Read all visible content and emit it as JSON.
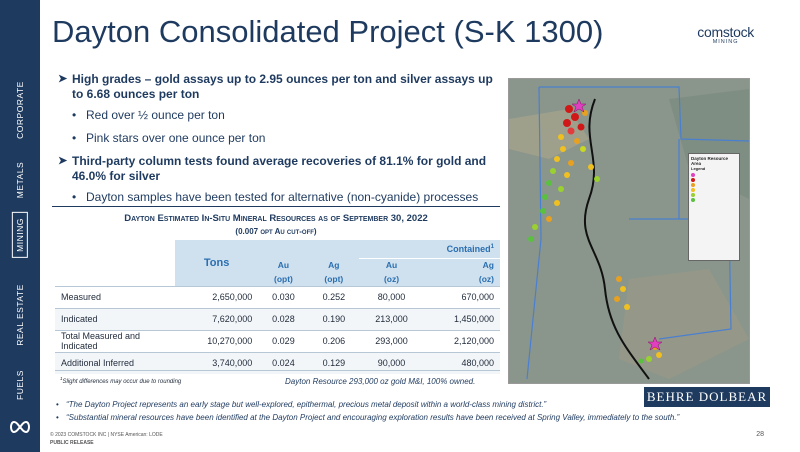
{
  "sidebar": {
    "items": [
      {
        "label": "CORPORATE"
      },
      {
        "label": "METALS"
      },
      {
        "label": "MINING"
      },
      {
        "label": "REAL ESTATE"
      },
      {
        "label": "FUELS"
      }
    ],
    "active": "MINING"
  },
  "header": {
    "title": "Dayton Consolidated Project (S-K 1300)",
    "brand_name": "comstock",
    "brand_sub": "MINING"
  },
  "bullets": {
    "b1": "High grades – gold assays up to 2.95 ounces per ton and silver assays up to 6.68 ounces per ton",
    "b1_sub1": "Red over ½ ounce per ton",
    "b1_sub2": "Pink stars over one ounce per ton",
    "b2": "Third-party column tests found average recoveries of 81.1% for gold and 46.0% for silver",
    "b2_sub1": "Dayton samples have been tested for alternative (non-cyanide) processes"
  },
  "table": {
    "title": "Dayton Estimated In-Situ Mineral Resources as of September 30, 2022",
    "subtitle": "(0.007 opt Au cut-off)",
    "headers": {
      "tons": "Tons",
      "contained": "Contained",
      "contained_sup": "1",
      "au": "Au",
      "ag": "Ag",
      "opt": "(opt)",
      "oz": "(oz)"
    },
    "rows": [
      {
        "label": "Measured",
        "tons": "2,650,000",
        "au_opt": "0.030",
        "ag_opt": "0.252",
        "au_oz": "80,000",
        "ag_oz": "670,000"
      },
      {
        "label": "Indicated",
        "tons": "7,620,000",
        "au_opt": "0.028",
        "ag_opt": "0.190",
        "au_oz": "213,000",
        "ag_oz": "1,450,000"
      },
      {
        "label": "Total Measured and Indicated",
        "tons": "10,270,000",
        "au_opt": "0.029",
        "ag_opt": "0.206",
        "au_oz": "293,000",
        "ag_oz": "2,120,000"
      },
      {
        "label": "Additional Inferred",
        "tons": "3,740,000",
        "au_opt": "0.024",
        "ag_opt": "0.129",
        "au_oz": "90,000",
        "ag_oz": "480,000"
      }
    ],
    "footnote_sup": "1",
    "footnote": "Slight differences may occur due to rounding",
    "summary": "Dayton Resource 293,000 oz gold M&I, 100% owned."
  },
  "map": {
    "legend_title": "Dayton Resource Area",
    "legend_sub": "Legend"
  },
  "quotes": {
    "q1": "“The Dayton Project represents an early stage but well-explored, epithermal, precious metal deposit within a world-class mining district.”",
    "q2": "“Substantial mineral resources have been identified at the Dayton Project and encouraging exploration results have been received at Spring Valley, immediately to the south.”"
  },
  "partner_logo": "BEHRE DOLBEAR",
  "footer": {
    "copyright": "© 2023 COMSTOCK INC | NYSE American: LODE",
    "public": "PUBLIC RELEASE",
    "page": "28"
  },
  "colors": {
    "navy": "#1e3a5f",
    "accent_blue": "#2a6fb0",
    "header_fill": "#cfe0ef"
  }
}
